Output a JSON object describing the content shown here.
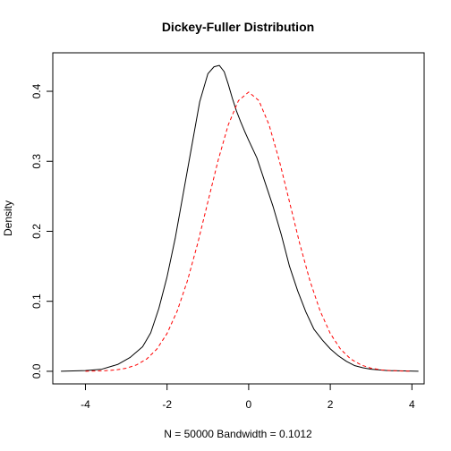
{
  "chart_data": {
    "type": "line",
    "title": "Dickey-Fuller Distribution",
    "xlabel": "N = 50000   Bandwidth = 0.1012",
    "ylabel": "Density",
    "xlim": [
      -4.8,
      4.3
    ],
    "ylim": [
      -0.018,
      0.455
    ],
    "xticks": [
      -4,
      -2,
      0,
      2,
      4
    ],
    "xtick_labels": [
      "-4",
      "-2",
      "0",
      "2",
      "4"
    ],
    "yticks": [
      0.0,
      0.1,
      0.2,
      0.3,
      0.4
    ],
    "ytick_labels": [
      "0.0",
      "0.1",
      "0.2",
      "0.3",
      "0.4"
    ],
    "grid": false,
    "legend": "none",
    "series": [
      {
        "style": "solid",
        "color": "#000000",
        "x": [
          -4.6,
          -4.0,
          -3.6,
          -3.2,
          -2.9,
          -2.6,
          -2.4,
          -2.2,
          -2.0,
          -1.8,
          -1.6,
          -1.4,
          -1.2,
          -1.0,
          -0.85,
          -0.72,
          -0.6,
          -0.5,
          -0.4,
          -0.3,
          -0.2,
          -0.1,
          0.0,
          0.2,
          0.4,
          0.6,
          0.8,
          1.0,
          1.2,
          1.4,
          1.6,
          1.8,
          2.0,
          2.2,
          2.4,
          2.6,
          2.8,
          3.0,
          3.4,
          3.8,
          4.16
        ],
        "y": [
          0.0,
          0.001,
          0.003,
          0.01,
          0.02,
          0.035,
          0.055,
          0.09,
          0.135,
          0.19,
          0.255,
          0.32,
          0.385,
          0.425,
          0.435,
          0.437,
          0.428,
          0.41,
          0.39,
          0.372,
          0.357,
          0.343,
          0.33,
          0.305,
          0.27,
          0.235,
          0.195,
          0.15,
          0.115,
          0.085,
          0.06,
          0.045,
          0.032,
          0.022,
          0.014,
          0.008,
          0.005,
          0.003,
          0.001,
          0.0005,
          0.0
        ]
      },
      {
        "style": "dashed",
        "color": "#ff0000",
        "x": [
          -4.0,
          -3.75,
          -3.5,
          -3.25,
          -3.0,
          -2.75,
          -2.5,
          -2.25,
          -2.0,
          -1.75,
          -1.5,
          -1.25,
          -1.0,
          -0.75,
          -0.5,
          -0.25,
          0.0,
          0.25,
          0.5,
          0.75,
          1.0,
          1.25,
          1.5,
          1.75,
          2.0,
          2.25,
          2.5,
          2.75,
          3.0,
          3.25,
          3.5,
          3.75,
          4.0
        ],
        "y": [
          0.0001,
          0.0004,
          0.0009,
          0.002,
          0.0044,
          0.0091,
          0.0175,
          0.0317,
          0.054,
          0.0863,
          0.1295,
          0.1826,
          0.242,
          0.3011,
          0.3521,
          0.3867,
          0.3989,
          0.3867,
          0.3521,
          0.3011,
          0.242,
          0.1826,
          0.1295,
          0.0863,
          0.054,
          0.0317,
          0.0175,
          0.0091,
          0.0044,
          0.002,
          0.0009,
          0.0004,
          0.0001
        ]
      }
    ]
  }
}
